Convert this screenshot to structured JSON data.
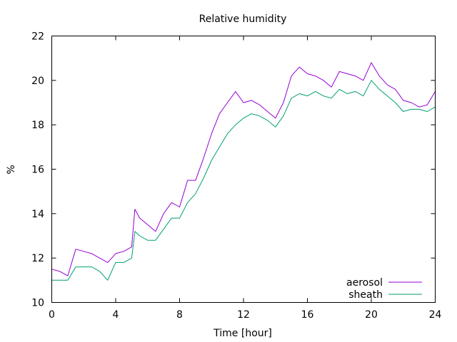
{
  "chart_data": {
    "type": "line",
    "title": "Relative humidity",
    "xlabel": "Time [hour]",
    "ylabel": "%",
    "xlim": [
      0,
      24
    ],
    "ylim": [
      10,
      22
    ],
    "xticks": [
      0,
      4,
      8,
      12,
      16,
      20,
      24
    ],
    "yticks": [
      10,
      12,
      14,
      16,
      18,
      20,
      22
    ],
    "grid": false,
    "legend_position": "bottom-right",
    "series": [
      {
        "name": "aerosol",
        "color": "#9400d3",
        "x": [
          0,
          0.5,
          1,
          1.5,
          2,
          2.5,
          3,
          3.5,
          4,
          4.5,
          5,
          5.2,
          5.5,
          6,
          6.5,
          7,
          7.5,
          8,
          8.5,
          9,
          9.5,
          10,
          10.5,
          11,
          11.5,
          12,
          12.5,
          13,
          13.5,
          14,
          14.5,
          15,
          15.5,
          16,
          16.5,
          17,
          17.5,
          18,
          18.5,
          19,
          19.5,
          20,
          20.5,
          21,
          21.5,
          22,
          22.5,
          23,
          23.5,
          24
        ],
        "y": [
          11.5,
          11.4,
          11.2,
          12.4,
          12.3,
          12.2,
          12.0,
          11.8,
          12.2,
          12.3,
          12.5,
          14.2,
          13.8,
          13.5,
          13.2,
          14.0,
          14.5,
          14.3,
          15.5,
          15.5,
          16.5,
          17.6,
          18.5,
          19.0,
          19.5,
          19.0,
          19.1,
          18.9,
          18.6,
          18.3,
          19.0,
          20.2,
          20.6,
          20.3,
          20.2,
          20.0,
          19.7,
          20.4,
          20.3,
          20.2,
          20.0,
          20.8,
          20.2,
          19.8,
          19.6,
          19.1,
          19.0,
          18.8,
          18.9,
          19.5
        ]
      },
      {
        "name": "sheath",
        "color": "#009e73",
        "x": [
          0,
          0.5,
          1,
          1.5,
          2,
          2.5,
          3,
          3.5,
          4,
          4.5,
          5,
          5.2,
          5.5,
          6,
          6.5,
          7,
          7.5,
          8,
          8.5,
          9,
          9.5,
          10,
          10.5,
          11,
          11.5,
          12,
          12.5,
          13,
          13.5,
          14,
          14.5,
          15,
          15.5,
          16,
          16.5,
          17,
          17.5,
          18,
          18.5,
          19,
          19.5,
          20,
          20.5,
          21,
          21.5,
          22,
          22.5,
          23,
          23.5,
          24
        ],
        "y": [
          11.0,
          11.0,
          11.0,
          11.6,
          11.6,
          11.6,
          11.4,
          11.0,
          11.8,
          11.8,
          12.0,
          13.2,
          13.0,
          12.8,
          12.8,
          13.3,
          13.8,
          13.8,
          14.5,
          14.9,
          15.6,
          16.4,
          17.0,
          17.6,
          18.0,
          18.3,
          18.5,
          18.4,
          18.2,
          17.9,
          18.4,
          19.2,
          19.4,
          19.3,
          19.5,
          19.3,
          19.2,
          19.6,
          19.4,
          19.5,
          19.3,
          20.0,
          19.6,
          19.3,
          19.0,
          18.6,
          18.7,
          18.7,
          18.6,
          18.8
        ]
      }
    ]
  }
}
